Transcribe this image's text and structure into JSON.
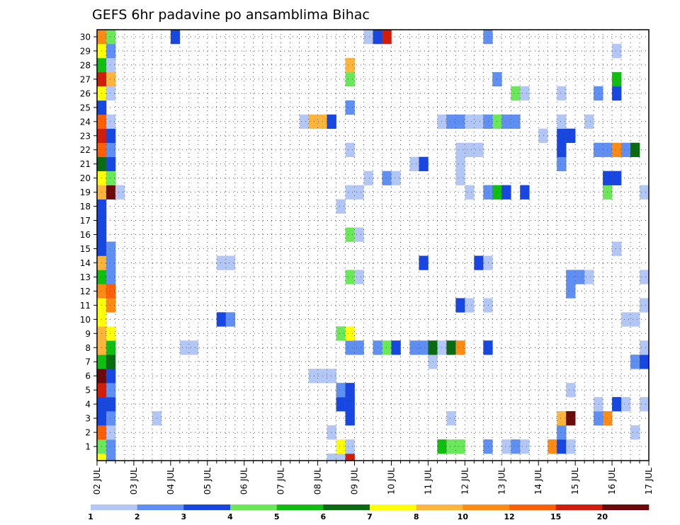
{
  "chart_data": {
    "type": "heatmap",
    "title": "GEFS 6hr padavine po ansamblima Bihac",
    "xlabel": "",
    "ylabel": "",
    "x_ticks": [
      "02 JUL",
      "03 JUL",
      "04 JUL",
      "05 JUL",
      "06 JUL",
      "07 JUL",
      "08 JUL",
      "09 JUL",
      "10 JUL",
      "11 JUL",
      "12 JUL",
      "13 JUL",
      "14 JUL",
      "15 JUL",
      "16 JUL",
      "17 JUL"
    ],
    "y_ticks": [
      "1",
      "2",
      "3",
      "4",
      "5",
      "6",
      "7",
      "8",
      "9",
      "10",
      "11",
      "12",
      "13",
      "14",
      "15",
      "16",
      "17",
      "18",
      "19",
      "20",
      "21",
      "22",
      "23",
      "24",
      "25",
      "26",
      "27",
      "28",
      "29",
      "30"
    ],
    "x_range": [
      0,
      60
    ],
    "y_range": [
      0,
      30
    ],
    "grid": true,
    "legend_position": "bottom",
    "colorbar": {
      "labels": [
        "1",
        "2",
        "3",
        "4",
        "5",
        "6",
        "7",
        "8",
        "10",
        "12",
        "15",
        "20"
      ],
      "colors": [
        "#b3c7f7",
        "#5f8ff2",
        "#1747e0",
        "#6be85a",
        "#12bd12",
        "#0a6b12",
        "#ffff0a",
        "#ffb43c",
        "#ff8b14",
        "#ff5f05",
        "#d11e0a",
        "#6b0a0a"
      ]
    },
    "cells": [
      {
        "x": 0,
        "y": 0,
        "level": 6
      },
      {
        "x": 0,
        "y": 1,
        "level": 3
      },
      {
        "x": 0,
        "y": 2,
        "level": 9
      },
      {
        "x": 0,
        "y": 3,
        "level": 2
      },
      {
        "x": 0,
        "y": 4,
        "level": 2
      },
      {
        "x": 0,
        "y": 5,
        "level": 10
      },
      {
        "x": 0,
        "y": 6,
        "level": 11
      },
      {
        "x": 0,
        "y": 7,
        "level": 4
      },
      {
        "x": 0,
        "y": 8,
        "level": 7
      },
      {
        "x": 0,
        "y": 9,
        "level": 7
      },
      {
        "x": 0,
        "y": 10,
        "level": 6
      },
      {
        "x": 0,
        "y": 11,
        "level": 6
      },
      {
        "x": 0,
        "y": 12,
        "level": 8
      },
      {
        "x": 0,
        "y": 13,
        "level": 4
      },
      {
        "x": 0,
        "y": 14,
        "level": 7
      },
      {
        "x": 0,
        "y": 15,
        "level": 2
      },
      {
        "x": 0,
        "y": 16,
        "level": 2
      },
      {
        "x": 0,
        "y": 17,
        "level": 2
      },
      {
        "x": 0,
        "y": 18,
        "level": 2
      },
      {
        "x": 0,
        "y": 19,
        "level": 7
      },
      {
        "x": 0,
        "y": 20,
        "level": 6
      },
      {
        "x": 0,
        "y": 21,
        "level": 5
      },
      {
        "x": 0,
        "y": 22,
        "level": 9
      },
      {
        "x": 0,
        "y": 23,
        "level": 10
      },
      {
        "x": 0,
        "y": 24,
        "level": 9
      },
      {
        "x": 0,
        "y": 25,
        "level": 2
      },
      {
        "x": 0,
        "y": 26,
        "level": 6
      },
      {
        "x": 0,
        "y": 27,
        "level": 10
      },
      {
        "x": 0,
        "y": 28,
        "level": 4
      },
      {
        "x": 0,
        "y": 29,
        "level": 6
      },
      {
        "x": 0,
        "y": 30,
        "level": 8
      },
      {
        "x": 1,
        "y": 0,
        "level": 1
      },
      {
        "x": 1,
        "y": 1,
        "level": 1
      },
      {
        "x": 1,
        "y": 2,
        "level": 0
      },
      {
        "x": 1,
        "y": 3,
        "level": 1
      },
      {
        "x": 1,
        "y": 4,
        "level": 2
      },
      {
        "x": 1,
        "y": 5,
        "level": 1
      },
      {
        "x": 1,
        "y": 6,
        "level": 2
      },
      {
        "x": 1,
        "y": 7,
        "level": 5
      },
      {
        "x": 1,
        "y": 8,
        "level": 4
      },
      {
        "x": 1,
        "y": 9,
        "level": 6
      },
      {
        "x": 1,
        "y": 11,
        "level": 8
      },
      {
        "x": 1,
        "y": 12,
        "level": 9
      },
      {
        "x": 1,
        "y": 13,
        "level": 1
      },
      {
        "x": 1,
        "y": 14,
        "level": 1
      },
      {
        "x": 1,
        "y": 15,
        "level": 1
      },
      {
        "x": 1,
        "y": 19,
        "level": 11
      },
      {
        "x": 1,
        "y": 20,
        "level": 3
      },
      {
        "x": 1,
        "y": 21,
        "level": 2
      },
      {
        "x": 1,
        "y": 22,
        "level": 1
      },
      {
        "x": 1,
        "y": 23,
        "level": 2
      },
      {
        "x": 1,
        "y": 24,
        "level": 0
      },
      {
        "x": 1,
        "y": 26,
        "level": 0
      },
      {
        "x": 1,
        "y": 27,
        "level": 7
      },
      {
        "x": 1,
        "y": 28,
        "level": 0
      },
      {
        "x": 1,
        "y": 29,
        "level": 1
      },
      {
        "x": 1,
        "y": 30,
        "level": 3
      },
      {
        "x": 2,
        "y": 19,
        "level": 0
      },
      {
        "x": 6,
        "y": 3,
        "level": 0
      },
      {
        "x": 8,
        "y": 30,
        "level": 2
      },
      {
        "x": 9,
        "y": 8,
        "level": 0
      },
      {
        "x": 10,
        "y": 8,
        "level": 0
      },
      {
        "x": 13,
        "y": 10,
        "level": 2
      },
      {
        "x": 13,
        "y": 14,
        "level": 0
      },
      {
        "x": 14,
        "y": 10,
        "level": 1
      },
      {
        "x": 14,
        "y": 14,
        "level": 0
      },
      {
        "x": 22,
        "y": 24,
        "level": 0
      },
      {
        "x": 23,
        "y": 6,
        "level": 0
      },
      {
        "x": 23,
        "y": 24,
        "level": 7
      },
      {
        "x": 24,
        "y": 6,
        "level": 0
      },
      {
        "x": 24,
        "y": 24,
        "level": 7
      },
      {
        "x": 25,
        "y": 6,
        "level": 0
      },
      {
        "x": 25,
        "y": 24,
        "level": 2
      },
      {
        "x": 25,
        "y": 0,
        "level": 0
      },
      {
        "x": 25,
        "y": 2,
        "level": 0
      },
      {
        "x": 26,
        "y": 0,
        "level": 0
      },
      {
        "x": 26,
        "y": 1,
        "level": 6
      },
      {
        "x": 26,
        "y": 4,
        "level": 2
      },
      {
        "x": 26,
        "y": 5,
        "level": 1
      },
      {
        "x": 26,
        "y": 9,
        "level": 3
      },
      {
        "x": 26,
        "y": 18,
        "level": 0
      },
      {
        "x": 27,
        "y": 0,
        "level": 10
      },
      {
        "x": 27,
        "y": 1,
        "level": 0
      },
      {
        "x": 27,
        "y": 3,
        "level": 2
      },
      {
        "x": 27,
        "y": 4,
        "level": 2
      },
      {
        "x": 27,
        "y": 5,
        "level": 2
      },
      {
        "x": 27,
        "y": 8,
        "level": 1
      },
      {
        "x": 27,
        "y": 9,
        "level": 6
      },
      {
        "x": 27,
        "y": 13,
        "level": 3
      },
      {
        "x": 27,
        "y": 16,
        "level": 3
      },
      {
        "x": 27,
        "y": 19,
        "level": 0
      },
      {
        "x": 27,
        "y": 22,
        "level": 0
      },
      {
        "x": 27,
        "y": 25,
        "level": 1
      },
      {
        "x": 27,
        "y": 27,
        "level": 3
      },
      {
        "x": 27,
        "y": 28,
        "level": 7
      },
      {
        "x": 28,
        "y": 8,
        "level": 1
      },
      {
        "x": 28,
        "y": 13,
        "level": 0
      },
      {
        "x": 28,
        "y": 16,
        "level": 0
      },
      {
        "x": 28,
        "y": 19,
        "level": 0
      },
      {
        "x": 29,
        "y": 20,
        "level": 0
      },
      {
        "x": 29,
        "y": 30,
        "level": 0
      },
      {
        "x": 30,
        "y": 30,
        "level": 2
      },
      {
        "x": 30,
        "y": 8,
        "level": 1
      },
      {
        "x": 31,
        "y": 8,
        "level": 3
      },
      {
        "x": 31,
        "y": 20,
        "level": 1
      },
      {
        "x": 31,
        "y": 30,
        "level": 10
      },
      {
        "x": 32,
        "y": 8,
        "level": 2
      },
      {
        "x": 32,
        "y": 20,
        "level": 0
      },
      {
        "x": 34,
        "y": 8,
        "level": 1
      },
      {
        "x": 34,
        "y": 21,
        "level": 0
      },
      {
        "x": 35,
        "y": 8,
        "level": 1
      },
      {
        "x": 35,
        "y": 14,
        "level": 2
      },
      {
        "x": 35,
        "y": 21,
        "level": 2
      },
      {
        "x": 36,
        "y": 7,
        "level": 0
      },
      {
        "x": 36,
        "y": 8,
        "level": 5
      },
      {
        "x": 37,
        "y": 1,
        "level": 4
      },
      {
        "x": 37,
        "y": 8,
        "level": 0
      },
      {
        "x": 37,
        "y": 24,
        "level": 0
      },
      {
        "x": 38,
        "y": 1,
        "level": 3
      },
      {
        "x": 38,
        "y": 3,
        "level": 0
      },
      {
        "x": 38,
        "y": 8,
        "level": 5
      },
      {
        "x": 38,
        "y": 24,
        "level": 1
      },
      {
        "x": 39,
        "y": 1,
        "level": 3
      },
      {
        "x": 39,
        "y": 8,
        "level": 8
      },
      {
        "x": 39,
        "y": 11,
        "level": 2
      },
      {
        "x": 39,
        "y": 20,
        "level": 0
      },
      {
        "x": 39,
        "y": 21,
        "level": 0
      },
      {
        "x": 39,
        "y": 22,
        "level": 0
      },
      {
        "x": 39,
        "y": 24,
        "level": 1
      },
      {
        "x": 40,
        "y": 11,
        "level": 0
      },
      {
        "x": 40,
        "y": 19,
        "level": 0
      },
      {
        "x": 40,
        "y": 22,
        "level": 0
      },
      {
        "x": 40,
        "y": 24,
        "level": 0
      },
      {
        "x": 41,
        "y": 14,
        "level": 2
      },
      {
        "x": 41,
        "y": 22,
        "level": 0
      },
      {
        "x": 41,
        "y": 24,
        "level": 0
      },
      {
        "x": 42,
        "y": 1,
        "level": 1
      },
      {
        "x": 42,
        "y": 8,
        "level": 2
      },
      {
        "x": 42,
        "y": 11,
        "level": 0
      },
      {
        "x": 42,
        "y": 14,
        "level": 0
      },
      {
        "x": 42,
        "y": 19,
        "level": 1
      },
      {
        "x": 42,
        "y": 24,
        "level": 1
      },
      {
        "x": 42,
        "y": 30,
        "level": 1
      },
      {
        "x": 43,
        "y": 19,
        "level": 4
      },
      {
        "x": 43,
        "y": 24,
        "level": 3
      },
      {
        "x": 43,
        "y": 27,
        "level": 1
      },
      {
        "x": 44,
        "y": 1,
        "level": 0
      },
      {
        "x": 44,
        "y": 19,
        "level": 2
      },
      {
        "x": 44,
        "y": 24,
        "level": 1
      },
      {
        "x": 45,
        "y": 1,
        "level": 1
      },
      {
        "x": 45,
        "y": 24,
        "level": 1
      },
      {
        "x": 45,
        "y": 26,
        "level": 3
      },
      {
        "x": 46,
        "y": 1,
        "level": 0
      },
      {
        "x": 46,
        "y": 19,
        "level": 2
      },
      {
        "x": 46,
        "y": 26,
        "level": 0
      },
      {
        "x": 48,
        "y": 23,
        "level": 0
      },
      {
        "x": 49,
        "y": 1,
        "level": 8
      },
      {
        "x": 50,
        "y": 1,
        "level": 2
      },
      {
        "x": 50,
        "y": 2,
        "level": 1
      },
      {
        "x": 50,
        "y": 3,
        "level": 7
      },
      {
        "x": 50,
        "y": 21,
        "level": 1
      },
      {
        "x": 50,
        "y": 22,
        "level": 2
      },
      {
        "x": 50,
        "y": 23,
        "level": 2
      },
      {
        "x": 50,
        "y": 24,
        "level": 0
      },
      {
        "x": 50,
        "y": 26,
        "level": 0
      },
      {
        "x": 51,
        "y": 1,
        "level": 0
      },
      {
        "x": 51,
        "y": 3,
        "level": 11
      },
      {
        "x": 51,
        "y": 5,
        "level": 0
      },
      {
        "x": 51,
        "y": 12,
        "level": 1
      },
      {
        "x": 51,
        "y": 13,
        "level": 1
      },
      {
        "x": 51,
        "y": 23,
        "level": 2
      },
      {
        "x": 52,
        "y": 13,
        "level": 1
      },
      {
        "x": 53,
        "y": 13,
        "level": 0
      },
      {
        "x": 53,
        "y": 24,
        "level": 0
      },
      {
        "x": 54,
        "y": 3,
        "level": 1
      },
      {
        "x": 54,
        "y": 4,
        "level": 0
      },
      {
        "x": 54,
        "y": 22,
        "level": 1
      },
      {
        "x": 54,
        "y": 26,
        "level": 1
      },
      {
        "x": 55,
        "y": 3,
        "level": 8
      },
      {
        "x": 55,
        "y": 19,
        "level": 3
      },
      {
        "x": 55,
        "y": 20,
        "level": 2
      },
      {
        "x": 55,
        "y": 22,
        "level": 1
      },
      {
        "x": 56,
        "y": 4,
        "level": 2
      },
      {
        "x": 56,
        "y": 15,
        "level": 0
      },
      {
        "x": 56,
        "y": 20,
        "level": 2
      },
      {
        "x": 56,
        "y": 22,
        "level": 8
      },
      {
        "x": 56,
        "y": 26,
        "level": 2
      },
      {
        "x": 56,
        "y": 27,
        "level": 4
      },
      {
        "x": 56,
        "y": 29,
        "level": 0
      },
      {
        "x": 57,
        "y": 4,
        "level": 0
      },
      {
        "x": 57,
        "y": 10,
        "level": 0
      },
      {
        "x": 57,
        "y": 22,
        "level": 1
      },
      {
        "x": 58,
        "y": 2,
        "level": 0
      },
      {
        "x": 58,
        "y": 7,
        "level": 1
      },
      {
        "x": 58,
        "y": 10,
        "level": 0
      },
      {
        "x": 58,
        "y": 22,
        "level": 5
      },
      {
        "x": 59,
        "y": 4,
        "level": 0
      },
      {
        "x": 59,
        "y": 7,
        "level": 2
      },
      {
        "x": 59,
        "y": 8,
        "level": 0
      },
      {
        "x": 59,
        "y": 11,
        "level": 0
      },
      {
        "x": 59,
        "y": 13,
        "level": 0
      },
      {
        "x": 59,
        "y": 19,
        "level": 0
      }
    ]
  }
}
